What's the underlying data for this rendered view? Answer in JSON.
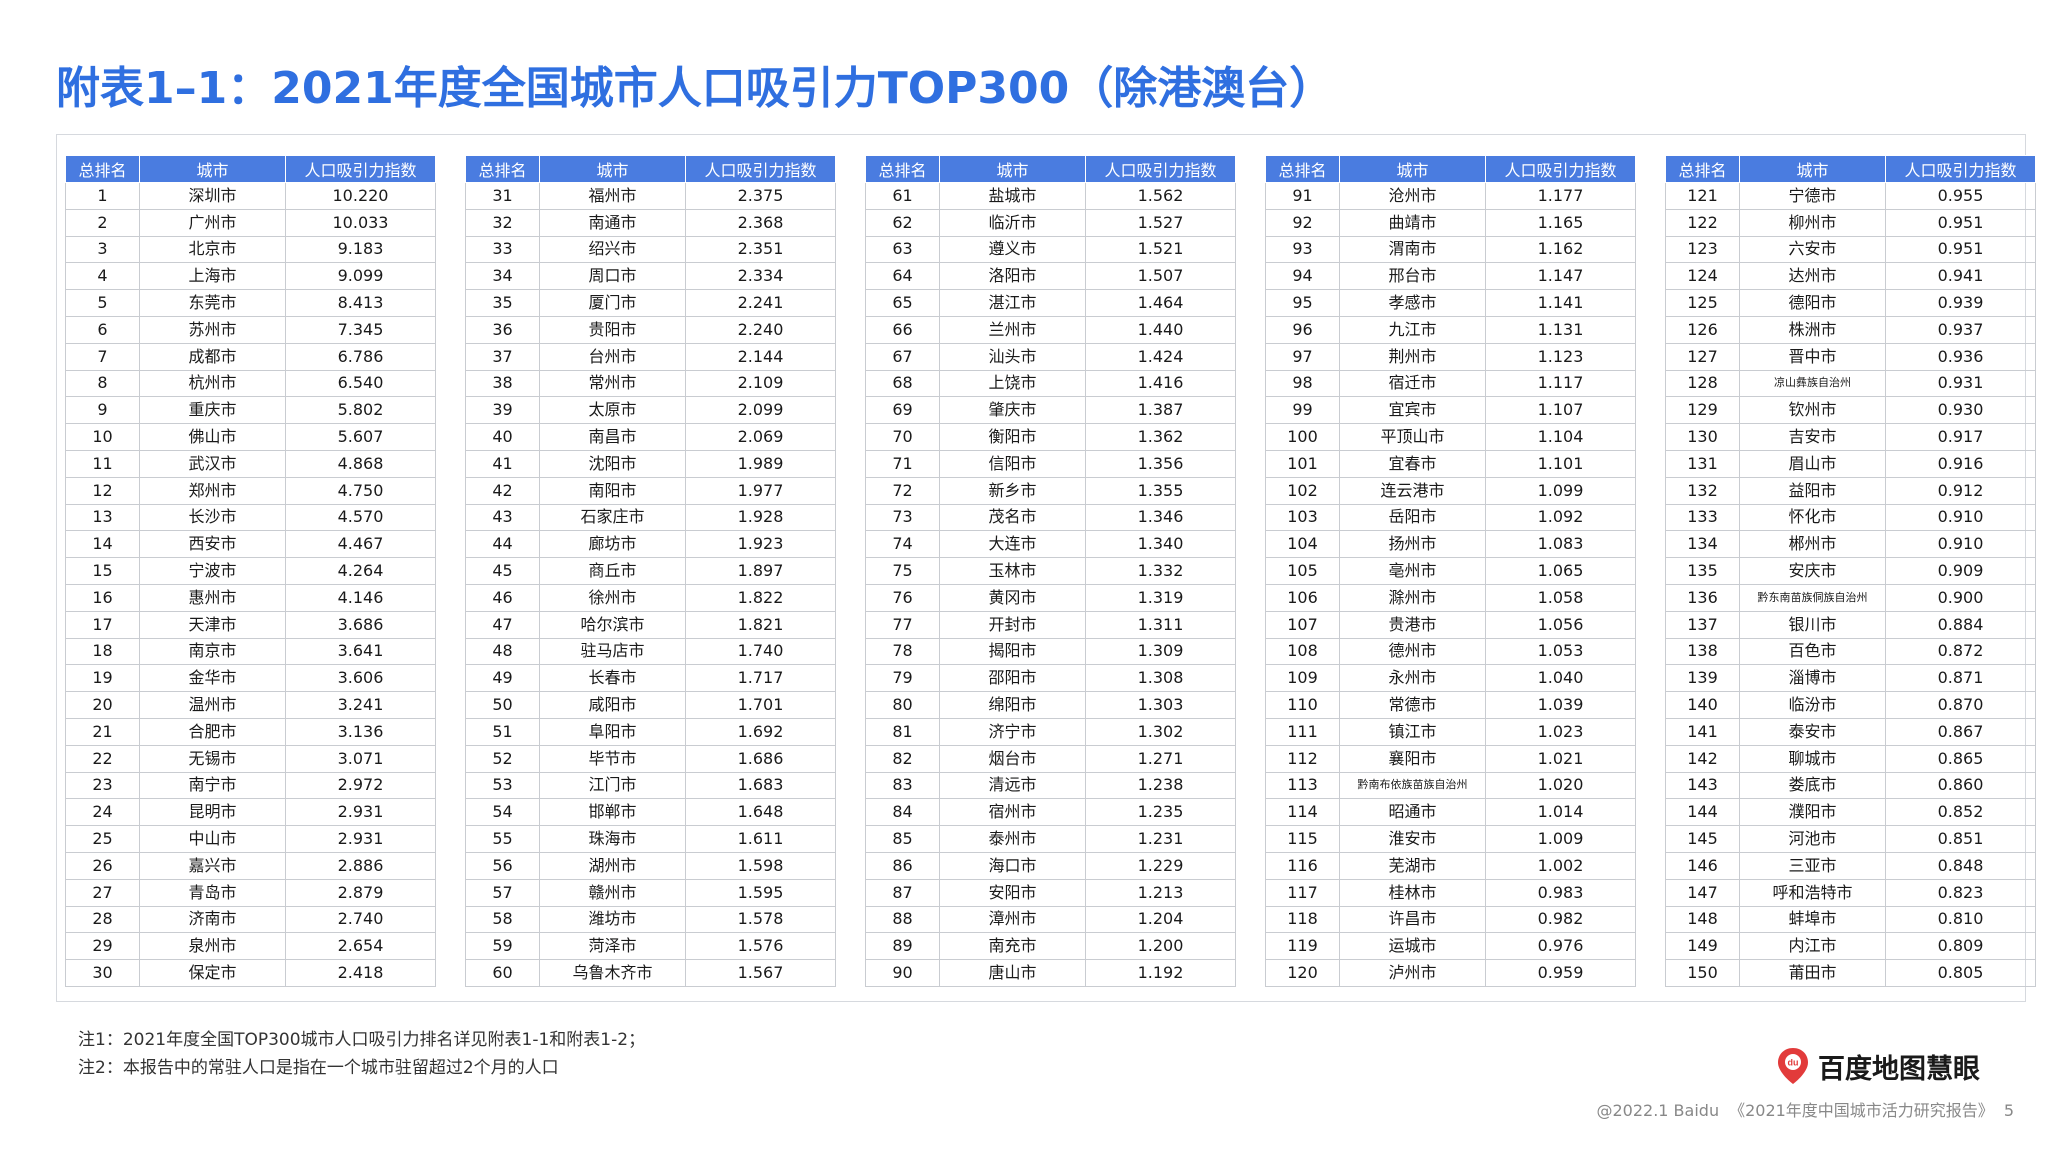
{
  "title": "附表1–1：2021年度全国城市人口吸引力TOP300（除港澳台）",
  "table_headers": [
    "总排名",
    "城市",
    "人口吸引力指数"
  ],
  "rows": [
    [
      "1",
      "深圳市",
      "10.220"
    ],
    [
      "2",
      "广州市",
      "10.033"
    ],
    [
      "3",
      "北京市",
      "9.183"
    ],
    [
      "4",
      "上海市",
      "9.099"
    ],
    [
      "5",
      "东莞市",
      "8.413"
    ],
    [
      "6",
      "苏州市",
      "7.345"
    ],
    [
      "7",
      "成都市",
      "6.786"
    ],
    [
      "8",
      "杭州市",
      "6.540"
    ],
    [
      "9",
      "重庆市",
      "5.802"
    ],
    [
      "10",
      "佛山市",
      "5.607"
    ],
    [
      "11",
      "武汉市",
      "4.868"
    ],
    [
      "12",
      "郑州市",
      "4.750"
    ],
    [
      "13",
      "长沙市",
      "4.570"
    ],
    [
      "14",
      "西安市",
      "4.467"
    ],
    [
      "15",
      "宁波市",
      "4.264"
    ],
    [
      "16",
      "惠州市",
      "4.146"
    ],
    [
      "17",
      "天津市",
      "3.686"
    ],
    [
      "18",
      "南京市",
      "3.641"
    ],
    [
      "19",
      "金华市",
      "3.606"
    ],
    [
      "20",
      "温州市",
      "3.241"
    ],
    [
      "21",
      "合肥市",
      "3.136"
    ],
    [
      "22",
      "无锡市",
      "3.071"
    ],
    [
      "23",
      "南宁市",
      "2.972"
    ],
    [
      "24",
      "昆明市",
      "2.931"
    ],
    [
      "25",
      "中山市",
      "2.931"
    ],
    [
      "26",
      "嘉兴市",
      "2.886"
    ],
    [
      "27",
      "青岛市",
      "2.879"
    ],
    [
      "28",
      "济南市",
      "2.740"
    ],
    [
      "29",
      "泉州市",
      "2.654"
    ],
    [
      "30",
      "保定市",
      "2.418"
    ],
    [
      "31",
      "福州市",
      "2.375"
    ],
    [
      "32",
      "南通市",
      "2.368"
    ],
    [
      "33",
      "绍兴市",
      "2.351"
    ],
    [
      "34",
      "周口市",
      "2.334"
    ],
    [
      "35",
      "厦门市",
      "2.241"
    ],
    [
      "36",
      "贵阳市",
      "2.240"
    ],
    [
      "37",
      "台州市",
      "2.144"
    ],
    [
      "38",
      "常州市",
      "2.109"
    ],
    [
      "39",
      "太原市",
      "2.099"
    ],
    [
      "40",
      "南昌市",
      "2.069"
    ],
    [
      "41",
      "沈阳市",
      "1.989"
    ],
    [
      "42",
      "南阳市",
      "1.977"
    ],
    [
      "43",
      "石家庄市",
      "1.928"
    ],
    [
      "44",
      "廊坊市",
      "1.923"
    ],
    [
      "45",
      "商丘市",
      "1.897"
    ],
    [
      "46",
      "徐州市",
      "1.822"
    ],
    [
      "47",
      "哈尔滨市",
      "1.821"
    ],
    [
      "48",
      "驻马店市",
      "1.740"
    ],
    [
      "49",
      "长春市",
      "1.717"
    ],
    [
      "50",
      "咸阳市",
      "1.701"
    ],
    [
      "51",
      "阜阳市",
      "1.692"
    ],
    [
      "52",
      "毕节市",
      "1.686"
    ],
    [
      "53",
      "江门市",
      "1.683"
    ],
    [
      "54",
      "邯郸市",
      "1.648"
    ],
    [
      "55",
      "珠海市",
      "1.611"
    ],
    [
      "56",
      "湖州市",
      "1.598"
    ],
    [
      "57",
      "赣州市",
      "1.595"
    ],
    [
      "58",
      "潍坊市",
      "1.578"
    ],
    [
      "59",
      "菏泽市",
      "1.576"
    ],
    [
      "60",
      "乌鲁木齐市",
      "1.567"
    ],
    [
      "61",
      "盐城市",
      "1.562"
    ],
    [
      "62",
      "临沂市",
      "1.527"
    ],
    [
      "63",
      "遵义市",
      "1.521"
    ],
    [
      "64",
      "洛阳市",
      "1.507"
    ],
    [
      "65",
      "湛江市",
      "1.464"
    ],
    [
      "66",
      "兰州市",
      "1.440"
    ],
    [
      "67",
      "汕头市",
      "1.424"
    ],
    [
      "68",
      "上饶市",
      "1.416"
    ],
    [
      "69",
      "肇庆市",
      "1.387"
    ],
    [
      "70",
      "衡阳市",
      "1.362"
    ],
    [
      "71",
      "信阳市",
      "1.356"
    ],
    [
      "72",
      "新乡市",
      "1.355"
    ],
    [
      "73",
      "茂名市",
      "1.346"
    ],
    [
      "74",
      "大连市",
      "1.340"
    ],
    [
      "75",
      "玉林市",
      "1.332"
    ],
    [
      "76",
      "黄冈市",
      "1.319"
    ],
    [
      "77",
      "开封市",
      "1.311"
    ],
    [
      "78",
      "揭阳市",
      "1.309"
    ],
    [
      "79",
      "邵阳市",
      "1.308"
    ],
    [
      "80",
      "绵阳市",
      "1.303"
    ],
    [
      "81",
      "济宁市",
      "1.302"
    ],
    [
      "82",
      "烟台市",
      "1.271"
    ],
    [
      "83",
      "清远市",
      "1.238"
    ],
    [
      "84",
      "宿州市",
      "1.235"
    ],
    [
      "85",
      "泰州市",
      "1.231"
    ],
    [
      "86",
      "海口市",
      "1.229"
    ],
    [
      "87",
      "安阳市",
      "1.213"
    ],
    [
      "88",
      "漳州市",
      "1.204"
    ],
    [
      "89",
      "南充市",
      "1.200"
    ],
    [
      "90",
      "唐山市",
      "1.192"
    ],
    [
      "91",
      "沧州市",
      "1.177"
    ],
    [
      "92",
      "曲靖市",
      "1.165"
    ],
    [
      "93",
      "渭南市",
      "1.162"
    ],
    [
      "94",
      "邢台市",
      "1.147"
    ],
    [
      "95",
      "孝感市",
      "1.141"
    ],
    [
      "96",
      "九江市",
      "1.131"
    ],
    [
      "97",
      "荆州市",
      "1.123"
    ],
    [
      "98",
      "宿迁市",
      "1.117"
    ],
    [
      "99",
      "宜宾市",
      "1.107"
    ],
    [
      "100",
      "平顶山市",
      "1.104"
    ],
    [
      "101",
      "宜春市",
      "1.101"
    ],
    [
      "102",
      "连云港市",
      "1.099"
    ],
    [
      "103",
      "岳阳市",
      "1.092"
    ],
    [
      "104",
      "扬州市",
      "1.083"
    ],
    [
      "105",
      "亳州市",
      "1.065"
    ],
    [
      "106",
      "滁州市",
      "1.058"
    ],
    [
      "107",
      "贵港市",
      "1.056"
    ],
    [
      "108",
      "德州市",
      "1.053"
    ],
    [
      "109",
      "永州市",
      "1.040"
    ],
    [
      "110",
      "常德市",
      "1.039"
    ],
    [
      "111",
      "镇江市",
      "1.023"
    ],
    [
      "112",
      "襄阳市",
      "1.021"
    ],
    [
      "113",
      "黔南布依族苗族自治州",
      "1.020"
    ],
    [
      "114",
      "昭通市",
      "1.014"
    ],
    [
      "115",
      "淮安市",
      "1.009"
    ],
    [
      "116",
      "芜湖市",
      "1.002"
    ],
    [
      "117",
      "桂林市",
      "0.983"
    ],
    [
      "118",
      "许昌市",
      "0.982"
    ],
    [
      "119",
      "运城市",
      "0.976"
    ],
    [
      "120",
      "泸州市",
      "0.959"
    ],
    [
      "121",
      "宁德市",
      "0.955"
    ],
    [
      "122",
      "柳州市",
      "0.951"
    ],
    [
      "123",
      "六安市",
      "0.951"
    ],
    [
      "124",
      "达州市",
      "0.941"
    ],
    [
      "125",
      "德阳市",
      "0.939"
    ],
    [
      "126",
      "株洲市",
      "0.937"
    ],
    [
      "127",
      "晋中市",
      "0.936"
    ],
    [
      "128",
      "凉山彝族自治州",
      "0.931"
    ],
    [
      "129",
      "钦州市",
      "0.930"
    ],
    [
      "130",
      "吉安市",
      "0.917"
    ],
    [
      "131",
      "眉山市",
      "0.916"
    ],
    [
      "132",
      "益阳市",
      "0.912"
    ],
    [
      "133",
      "怀化市",
      "0.910"
    ],
    [
      "134",
      "郴州市",
      "0.910"
    ],
    [
      "135",
      "安庆市",
      "0.909"
    ],
    [
      "136",
      "黔东南苗族侗族自治州",
      "0.900"
    ],
    [
      "137",
      "银川市",
      "0.884"
    ],
    [
      "138",
      "百色市",
      "0.872"
    ],
    [
      "139",
      "淄博市",
      "0.871"
    ],
    [
      "140",
      "临汾市",
      "0.870"
    ],
    [
      "141",
      "泰安市",
      "0.867"
    ],
    [
      "142",
      "聊城市",
      "0.865"
    ],
    [
      "143",
      "娄底市",
      "0.860"
    ],
    [
      "144",
      "濮阳市",
      "0.852"
    ],
    [
      "145",
      "河池市",
      "0.851"
    ],
    [
      "146",
      "三亚市",
      "0.848"
    ],
    [
      "147",
      "呼和浩特市",
      "0.823"
    ],
    [
      "148",
      "蚌埠市",
      "0.810"
    ],
    [
      "149",
      "内江市",
      "0.809"
    ],
    [
      "150",
      "莆田市",
      "0.805"
    ]
  ],
  "notes": [
    "注1：2021年度全国TOP300城市人口吸引力排名详见附表1-1和附表1-2；",
    "注2：本报告中的常驻人口是指在一个城市驻留超过2个月的人口"
  ],
  "brand": {
    "name": "百度地图慧眼",
    "icon": "map-pin-icon",
    "icon_text": "du"
  },
  "footer": {
    "copyright": "@2022.1 Baidu",
    "report": "《2021年度中国城市活力研究报告》",
    "page": "5"
  },
  "colors": {
    "title": "#2f6fe0",
    "header_bg": "#4a7ce0",
    "brand_red": "#e23b3b"
  }
}
